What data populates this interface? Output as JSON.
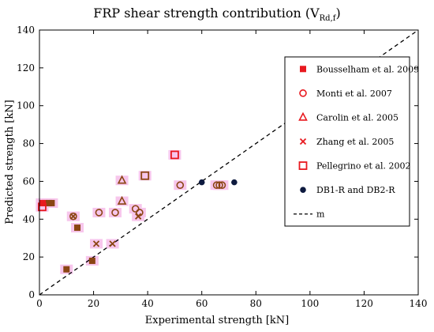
{
  "chart_data": {
    "type": "scatter",
    "title": "FRP shear strength contribution (V",
    "title_sub": "Rd,f",
    "title_end": ")",
    "xlabel": "Experimental strength [kN]",
    "ylabel": "Predicted strength [kN]",
    "xlim": [
      0,
      140
    ],
    "ylim": [
      0,
      140
    ],
    "xticks": [
      "0",
      "20",
      "40",
      "60",
      "80",
      "100",
      "120",
      "140"
    ],
    "yticks": [
      "0",
      "20",
      "40",
      "60",
      "80",
      "100",
      "120",
      "140"
    ],
    "grid": false,
    "legend_position": "right",
    "colors": {
      "red": "#e8191f",
      "brown": "#8b4513",
      "navy": "#0d1a3f",
      "highlight": "#f7c6ec",
      "axis": "#000000"
    },
    "series": [
      {
        "name": "Bousselham et al. 2009",
        "marker": "square-filled",
        "points": [
          {
            "x": 1,
            "y": 48.5,
            "c": "red"
          },
          {
            "x": 2,
            "y": 48.5,
            "c": "red"
          },
          {
            "x": 3.5,
            "y": 48.5,
            "c": "brown"
          },
          {
            "x": 4.5,
            "y": 48.5,
            "c": "brown"
          },
          {
            "x": 10,
            "y": 13.5,
            "c": "brown"
          },
          {
            "x": 14,
            "y": 35.5,
            "c": "brown"
          },
          {
            "x": 19.5,
            "y": 18,
            "c": "brown"
          }
        ]
      },
      {
        "name": "Monti et al. 2007",
        "marker": "circle-open",
        "points": [
          {
            "x": 12.5,
            "y": 41.5,
            "c": "brown"
          },
          {
            "x": 22,
            "y": 43.5,
            "c": "brown"
          },
          {
            "x": 28,
            "y": 43.5,
            "c": "brown"
          },
          {
            "x": 35.5,
            "y": 45.5,
            "c": "brown"
          },
          {
            "x": 37,
            "y": 43.5,
            "c": "brown"
          },
          {
            "x": 52,
            "y": 58,
            "c": "brown"
          },
          {
            "x": 65.5,
            "y": 58,
            "c": "brown"
          },
          {
            "x": 66.5,
            "y": 58,
            "c": "brown"
          },
          {
            "x": 67.5,
            "y": 58,
            "c": "brown"
          }
        ]
      },
      {
        "name": "Carolin et al. 2005",
        "marker": "triangle-open",
        "points": [
          {
            "x": 30.5,
            "y": 60.5,
            "c": "brown"
          },
          {
            "x": 30.5,
            "y": 49.5,
            "c": "brown"
          }
        ]
      },
      {
        "name": "Zhang et al. 2005",
        "marker": "cross",
        "points": [
          {
            "x": 12.5,
            "y": 41.5,
            "c": "brown"
          },
          {
            "x": 21,
            "y": 27,
            "c": "brown"
          },
          {
            "x": 27,
            "y": 27,
            "c": "brown"
          },
          {
            "x": 36.5,
            "y": 41.5,
            "c": "brown"
          }
        ]
      },
      {
        "name": "Pellegrino et al. 2002",
        "marker": "square-open",
        "points": [
          {
            "x": 1,
            "y": 46.5,
            "c": "red"
          },
          {
            "x": 39,
            "y": 63,
            "c": "brown"
          },
          {
            "x": 50,
            "y": 74,
            "c": "red"
          }
        ]
      },
      {
        "name": "DB1-R and DB2-R",
        "marker": "circle-filled",
        "points": [
          {
            "x": 60,
            "y": 59.5,
            "c": "navy"
          },
          {
            "x": 72,
            "y": 59.5,
            "c": "navy"
          }
        ]
      },
      {
        "name": "m",
        "marker": "dashed-line",
        "points": [
          {
            "x": 0,
            "y": 0
          },
          {
            "x": 140,
            "y": 140
          }
        ]
      }
    ]
  }
}
